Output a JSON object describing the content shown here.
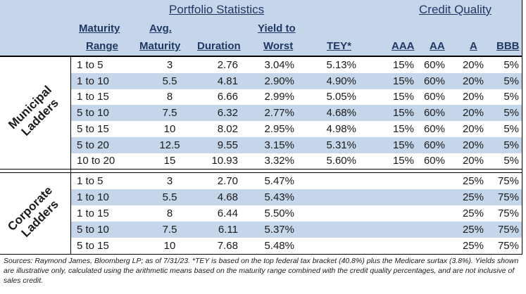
{
  "headers": {
    "portfolio_statistics": "Portfolio Statistics",
    "credit_quality": "Credit Quality",
    "maturity": "Maturity",
    "range": "Range",
    "avg": "Avg.",
    "maturity2": "Maturity",
    "duration": "Duration",
    "yield_to": "Yield to",
    "worst": "Worst",
    "tey": "TEY*",
    "aaa": "AAA",
    "aa": "AA",
    "a": "A",
    "bbb": "BBB"
  },
  "municipal": {
    "label_line1": "Municipal",
    "label_line2": "Ladders",
    "rows": [
      {
        "range": "1 to 5",
        "avg": "3",
        "duration": "2.76",
        "ytw": "3.04%",
        "tey": "5.13%",
        "aaa": "15%",
        "aa": "60%",
        "a": "20%",
        "bbb": "5%"
      },
      {
        "range": "1 to 10",
        "avg": "5.5",
        "duration": "4.81",
        "ytw": "2.90%",
        "tey": "4.90%",
        "aaa": "15%",
        "aa": "60%",
        "a": "20%",
        "bbb": "5%"
      },
      {
        "range": "1 to 15",
        "avg": "8",
        "duration": "6.66",
        "ytw": "2.99%",
        "tey": "5.05%",
        "aaa": "15%",
        "aa": "60%",
        "a": "20%",
        "bbb": "5%"
      },
      {
        "range": "5 to 10",
        "avg": "7.5",
        "duration": "6.32",
        "ytw": "2.77%",
        "tey": "4.68%",
        "aaa": "15%",
        "aa": "60%",
        "a": "20%",
        "bbb": "5%"
      },
      {
        "range": "5 to 15",
        "avg": "10",
        "duration": "8.02",
        "ytw": "2.95%",
        "tey": "4.98%",
        "aaa": "15%",
        "aa": "60%",
        "a": "20%",
        "bbb": "5%"
      },
      {
        "range": "5 to 20",
        "avg": "12.5",
        "duration": "9.55",
        "ytw": "3.15%",
        "tey": "5.31%",
        "aaa": "15%",
        "aa": "60%",
        "a": "20%",
        "bbb": "5%"
      },
      {
        "range": "10 to 20",
        "avg": "15",
        "duration": "10.93",
        "ytw": "3.32%",
        "tey": "5.60%",
        "aaa": "15%",
        "aa": "60%",
        "a": "20%",
        "bbb": "5%"
      }
    ]
  },
  "corporate": {
    "label_line1": "Corporate",
    "label_line2": "Ladders",
    "rows": [
      {
        "range": "1 to 5",
        "avg": "3",
        "duration": "2.70",
        "ytw": "5.47%",
        "tey": "",
        "aaa": "",
        "aa": "",
        "a": "25%",
        "bbb": "75%"
      },
      {
        "range": "1 to 10",
        "avg": "5.5",
        "duration": "4.68",
        "ytw": "5.43%",
        "tey": "",
        "aaa": "",
        "aa": "",
        "a": "25%",
        "bbb": "75%"
      },
      {
        "range": "1 to 15",
        "avg": "8",
        "duration": "6.44",
        "ytw": "5.50%",
        "tey": "",
        "aaa": "",
        "aa": "",
        "a": "25%",
        "bbb": "75%"
      },
      {
        "range": "5 to 10",
        "avg": "7.5",
        "duration": "6.11",
        "ytw": "5.37%",
        "tey": "",
        "aaa": "",
        "aa": "",
        "a": "25%",
        "bbb": "75%"
      },
      {
        "range": "5 to 15",
        "avg": "10",
        "duration": "7.68",
        "ytw": "5.48%",
        "tey": "",
        "aaa": "",
        "aa": "",
        "a": "25%",
        "bbb": "75%"
      }
    ]
  },
  "footnote": "Sources: Raymond James, Bloomberg LP; as of 7/31/23. *TEY is based on the top federal tax bracket (40.8%) plus the Medicare surtax (3.8%). Yields shown are illustrative only, calculated using the arithmetic means based on the maturity range combined with the credit quality percentages, and are not inclusive of sales credit."
}
